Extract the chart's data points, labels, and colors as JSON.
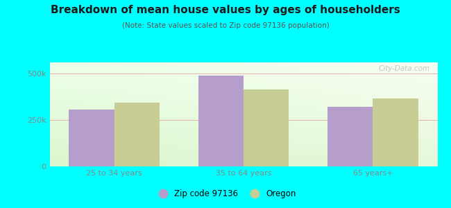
{
  "title": "Breakdown of mean house values by ages of householders",
  "subtitle": "(Note: State values scaled to Zip code 97136 population)",
  "categories": [
    "25 to 34 years",
    "35 to 64 years",
    "65 years+"
  ],
  "zip_values": [
    305000,
    490000,
    320000
  ],
  "oregon_values": [
    345000,
    415000,
    365000
  ],
  "zip_color": "#b59dcc",
  "oregon_color": "#c8cd96",
  "ylim": [
    0,
    560000
  ],
  "yticks": [
    0,
    250000,
    500000
  ],
  "ytick_labels": [
    "0",
    "250k",
    "500k"
  ],
  "legend_zip_label": "Zip code 97136",
  "legend_oregon_label": "Oregon",
  "background_outer": "#00ffff",
  "watermark": "City-Data.com",
  "bar_width": 0.35,
  "title_color": "#1a1a1a",
  "subtitle_color": "#555555",
  "tick_color": "#888888",
  "grid_color": "#e8b0b0"
}
